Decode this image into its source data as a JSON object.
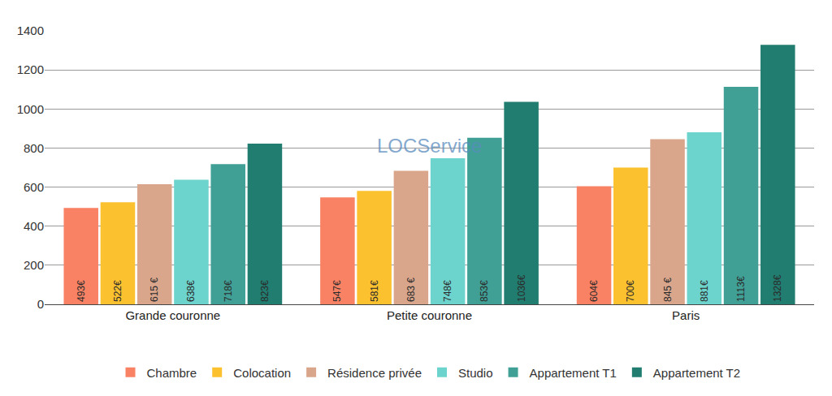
{
  "chart_data": {
    "type": "bar",
    "categories": [
      "Grande couronne",
      "Petite couronne",
      "Paris"
    ],
    "series": [
      {
        "name": "Chambre",
        "color": "#f98264",
        "values": [
          493,
          547,
          604
        ],
        "value_labels": [
          "493€",
          "547€",
          "604€"
        ]
      },
      {
        "name": "Colocation",
        "color": "#fbc12f",
        "values": [
          522,
          581,
          700
        ],
        "value_labels": [
          "522€",
          "581€",
          "700€"
        ]
      },
      {
        "name": "Résidence privée",
        "color": "#d9a68b",
        "values": [
          615,
          683,
          845
        ],
        "value_labels": [
          "615 €",
          "683 €",
          "845 €"
        ]
      },
      {
        "name": "Studio",
        "color": "#6dd4cd",
        "values": [
          638,
          748,
          881
        ],
        "value_labels": [
          "638€",
          "748€",
          "881€"
        ]
      },
      {
        "name": "Appartement T1",
        "color": "#40a096",
        "values": [
          718,
          853,
          1113
        ],
        "value_labels": [
          "718€",
          "853€",
          "1113€"
        ]
      },
      {
        "name": "Appartement T2",
        "color": "#217d70",
        "values": [
          823,
          1036,
          1328
        ],
        "value_labels": [
          "823€",
          "1036€",
          "1328€"
        ]
      }
    ],
    "ylim": [
      0,
      1400
    ],
    "yticks": [
      0,
      200,
      400,
      600,
      800,
      1000,
      1200,
      1400
    ],
    "grid": true,
    "legend": "bottom",
    "data_labels": true,
    "annotations": [
      "LOCService"
    ]
  }
}
